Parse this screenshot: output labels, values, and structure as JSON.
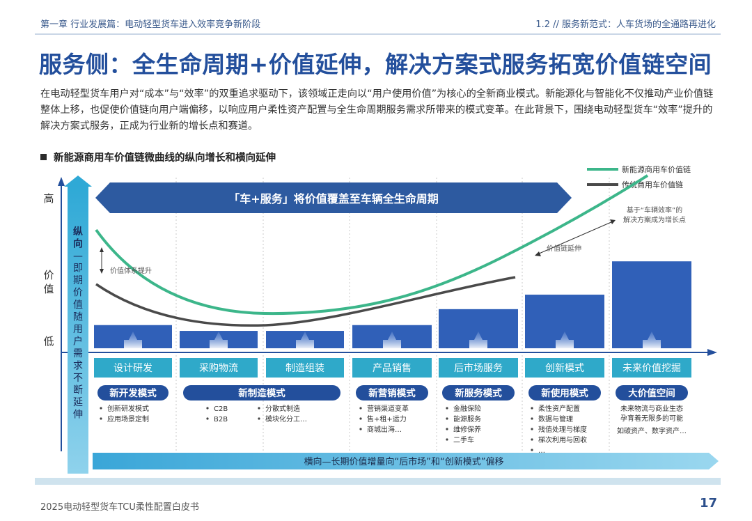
{
  "header": {
    "chapter": "第一章  行业发展篇：电动轻型货车进入效率竞争新阶段",
    "section": "1.2 // 服务新范式：人车货场的全通路再进化"
  },
  "title": "服务侧：全生命周期+价值延伸，解决方案式服务拓宽价值链空间",
  "intro": "在电动轻型货车用户对“成本”与“效率”的双重追求驱动下，该领域正走向以“用户使用价值”为核心的全新商业模式。新能源化与智能化不仅推动产业价值链整体上移，也促使价值链向用户端偏移，以响应用户柔性资产配置与全生命周期服务需求所带来的模式变革。在此背景下，围绕电动轻型货车“效率”提升的解决方案式服务，正成为行业新的增长点和赛道。",
  "section_title": "新能源商用车价值链微曲线的纵向增长和横向延伸",
  "diagram": {
    "y_high": "高",
    "y_value": [
      "价",
      "值"
    ],
    "y_low": "低",
    "vertical_label": [
      "纵",
      "向",
      "—",
      "即",
      "期",
      "价",
      "值",
      "随",
      "用",
      "户",
      "需",
      "求",
      "不",
      "断",
      "延",
      "伸"
    ],
    "top_banner": "「车+服务」将价值覆盖至车辆全生命周期",
    "legend": {
      "new_energy": "新能源商用车价值链",
      "traditional": "传统商用车价值链",
      "new_energy_color": "#3cb68a",
      "traditional_color": "#4a4a4a"
    },
    "annotations": {
      "value_lift": "价值体系提升",
      "chain_extend": "价值链延伸",
      "efficiency_note": [
        "基于“车辆效率”的",
        "解决方案成为增长点"
      ]
    },
    "stages": [
      {
        "name": "设计研发",
        "bar": 0.16,
        "mode": "新开发模式",
        "items": [
          "创新研发模式",
          "应用场景定制"
        ]
      },
      {
        "name": "采购物流",
        "bar": 0.12,
        "mode": "新制造模式",
        "items": [
          "C2B",
          "B2B"
        ],
        "items2": [
          "分散式制造",
          "模块化分工…"
        ]
      },
      {
        "name": "制造组装",
        "bar": 0.12
      },
      {
        "name": "产品销售",
        "bar": 0.16,
        "mode": "新营销模式",
        "items": [
          "营销渠道变革",
          "售+租+运力",
          "商城出海…"
        ]
      },
      {
        "name": "后市场服务",
        "bar": 0.27,
        "mode": "新服务模式",
        "items": [
          "金融保险",
          "能源服务",
          "维修保养",
          "二手车"
        ]
      },
      {
        "name": "创新模式",
        "bar": 0.37,
        "mode": "新使用模式",
        "items": [
          "柔性资产配置",
          "数据与管理",
          "残值处理与梯度",
          "梯次利用与回收",
          "…"
        ]
      },
      {
        "name": "未来价值挖掘",
        "bar": 0.6,
        "mode": "大价值空间",
        "notes": [
          "未来物流与商业生态",
          "孕育着无限多的可能",
          "如碳资产、数字资产…"
        ]
      }
    ],
    "bottom_banner": "横向—长期价值增量向“后市场”和“创新模式”偏移",
    "colors": {
      "bar": "#3060b8",
      "stage_band": "#2fa9c9",
      "mode_pill": "#234f9c",
      "axis_blue": "#234f9c",
      "banner": "#2d5aa0"
    }
  },
  "footer": {
    "left": "2025电动轻型货车TCU柔性配置白皮书",
    "page": "17"
  }
}
